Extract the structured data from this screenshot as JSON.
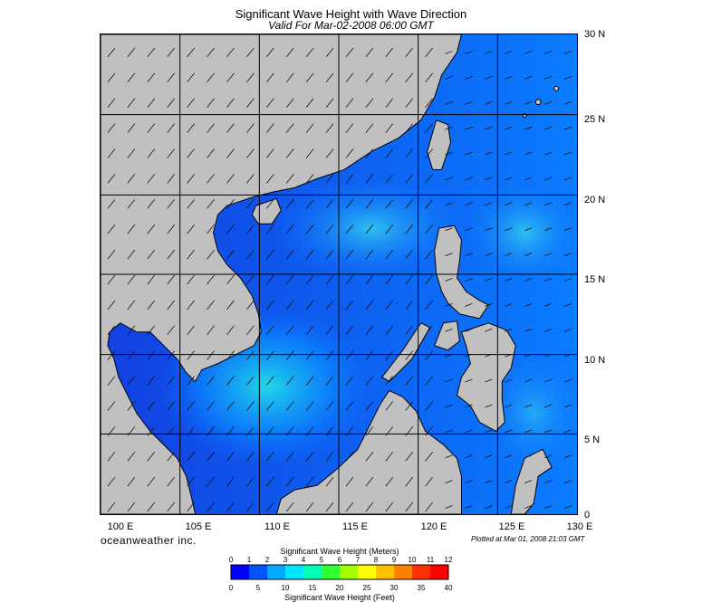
{
  "header": {
    "title": "Significant Wave Height with Wave Direction",
    "valid": "Valid For Mar-02-2008 06:00 GMT"
  },
  "map": {
    "lon_labels": [
      "100 E",
      "105 E",
      "110 E",
      "115 E",
      "120 E",
      "125 E",
      "130 E"
    ],
    "lat_labels": [
      "30 N",
      "25 N",
      "20 N",
      "15 N",
      "10 N",
      "5 N",
      "0"
    ],
    "colors": {
      "land": "#c0c0c0",
      "sea_low": "#1d2fd8",
      "sea_mid": "#0a73ff",
      "sea_high": "#19c8e6",
      "coast": "#000000"
    }
  },
  "footer": {
    "brand": "oceanweather inc.",
    "plotted": "Plotted at Mar 01, 2008 21:03 GMT"
  },
  "legend": {
    "meters_title": "Significant Wave Height (Meters)",
    "feet_title": "Significant Wave Height (Feet)",
    "meters_ticks": [
      "0",
      "1",
      "2",
      "3",
      "4",
      "5",
      "6",
      "7",
      "8",
      "9",
      "10",
      "11",
      "12"
    ],
    "feet_ticks": [
      "0",
      "5",
      "10",
      "15",
      "20",
      "25",
      "30",
      "35",
      "40"
    ],
    "colors": [
      "#0000ff",
      "#0055ff",
      "#00aaff",
      "#00e6ff",
      "#00ffb0",
      "#30ff30",
      "#a0ff00",
      "#ffff00",
      "#ffc000",
      "#ff8000",
      "#ff3000",
      "#ff0000"
    ]
  }
}
